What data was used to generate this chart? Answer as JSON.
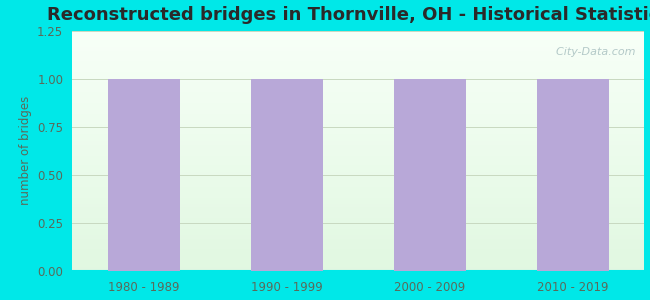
{
  "title": "Reconstructed bridges in Thornville, OH - Historical Statistics",
  "categories": [
    "1980 - 1989",
    "1990 - 1999",
    "2000 - 2009",
    "2010 - 2019"
  ],
  "values": [
    1,
    1,
    1,
    1
  ],
  "bar_color": "#b8a8d8",
  "ylabel": "number of bridges",
  "ylim": [
    0,
    1.25
  ],
  "yticks": [
    0,
    0.25,
    0.5,
    0.75,
    1,
    1.25
  ],
  "background_outer": "#00e8e8",
  "grid_color": "#c8d8c0",
  "tick_color": "#5a6a5a",
  "title_color": "#2a2a2a",
  "title_fontsize": 13,
  "axis_label_color": "#5a6a5a",
  "bar_width": 0.5,
  "watermark": "  City-Data.com",
  "watermark_color": "#a8c0c0"
}
